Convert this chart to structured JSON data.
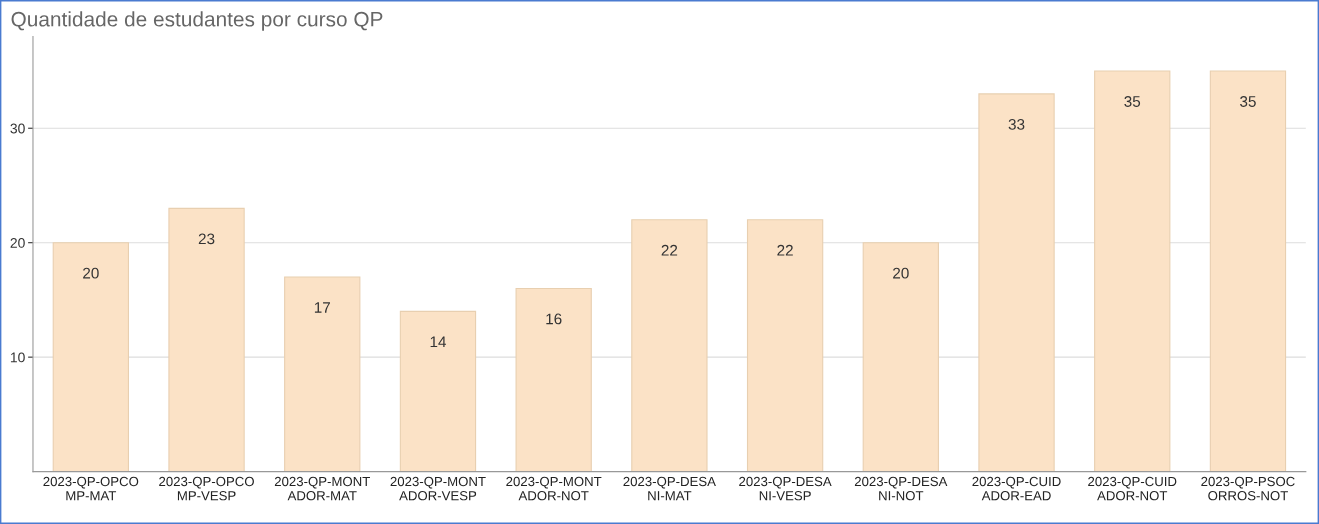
{
  "chart_data": {
    "type": "bar",
    "title": "Quantidade de estudantes por curso QP",
    "categories": [
      "2023-QP-OPCOMP-MAT",
      "2023-QP-OPCOMP-VESP",
      "2023-QP-MONTADOR-MAT",
      "2023-QP-MONTADOR-VESP",
      "2023-QP-MONTADOR-NOT",
      "2023-QP-DESANI-MAT",
      "2023-QP-DESANI-VESP",
      "2023-QP-DESANI-NOT",
      "2023-QP-CUIDADOR-EAD",
      "2023-QP-CUIDADOR-NOT",
      "2023-QP-PSOCORROS-NOT"
    ],
    "values": [
      20,
      23,
      17,
      14,
      16,
      22,
      22,
      20,
      33,
      35,
      35
    ],
    "color": "#fbe2c6",
    "ylim": [
      0,
      38
    ],
    "yticks": [
      10,
      20,
      30
    ],
    "grid": "y",
    "data_labels": true
  }
}
